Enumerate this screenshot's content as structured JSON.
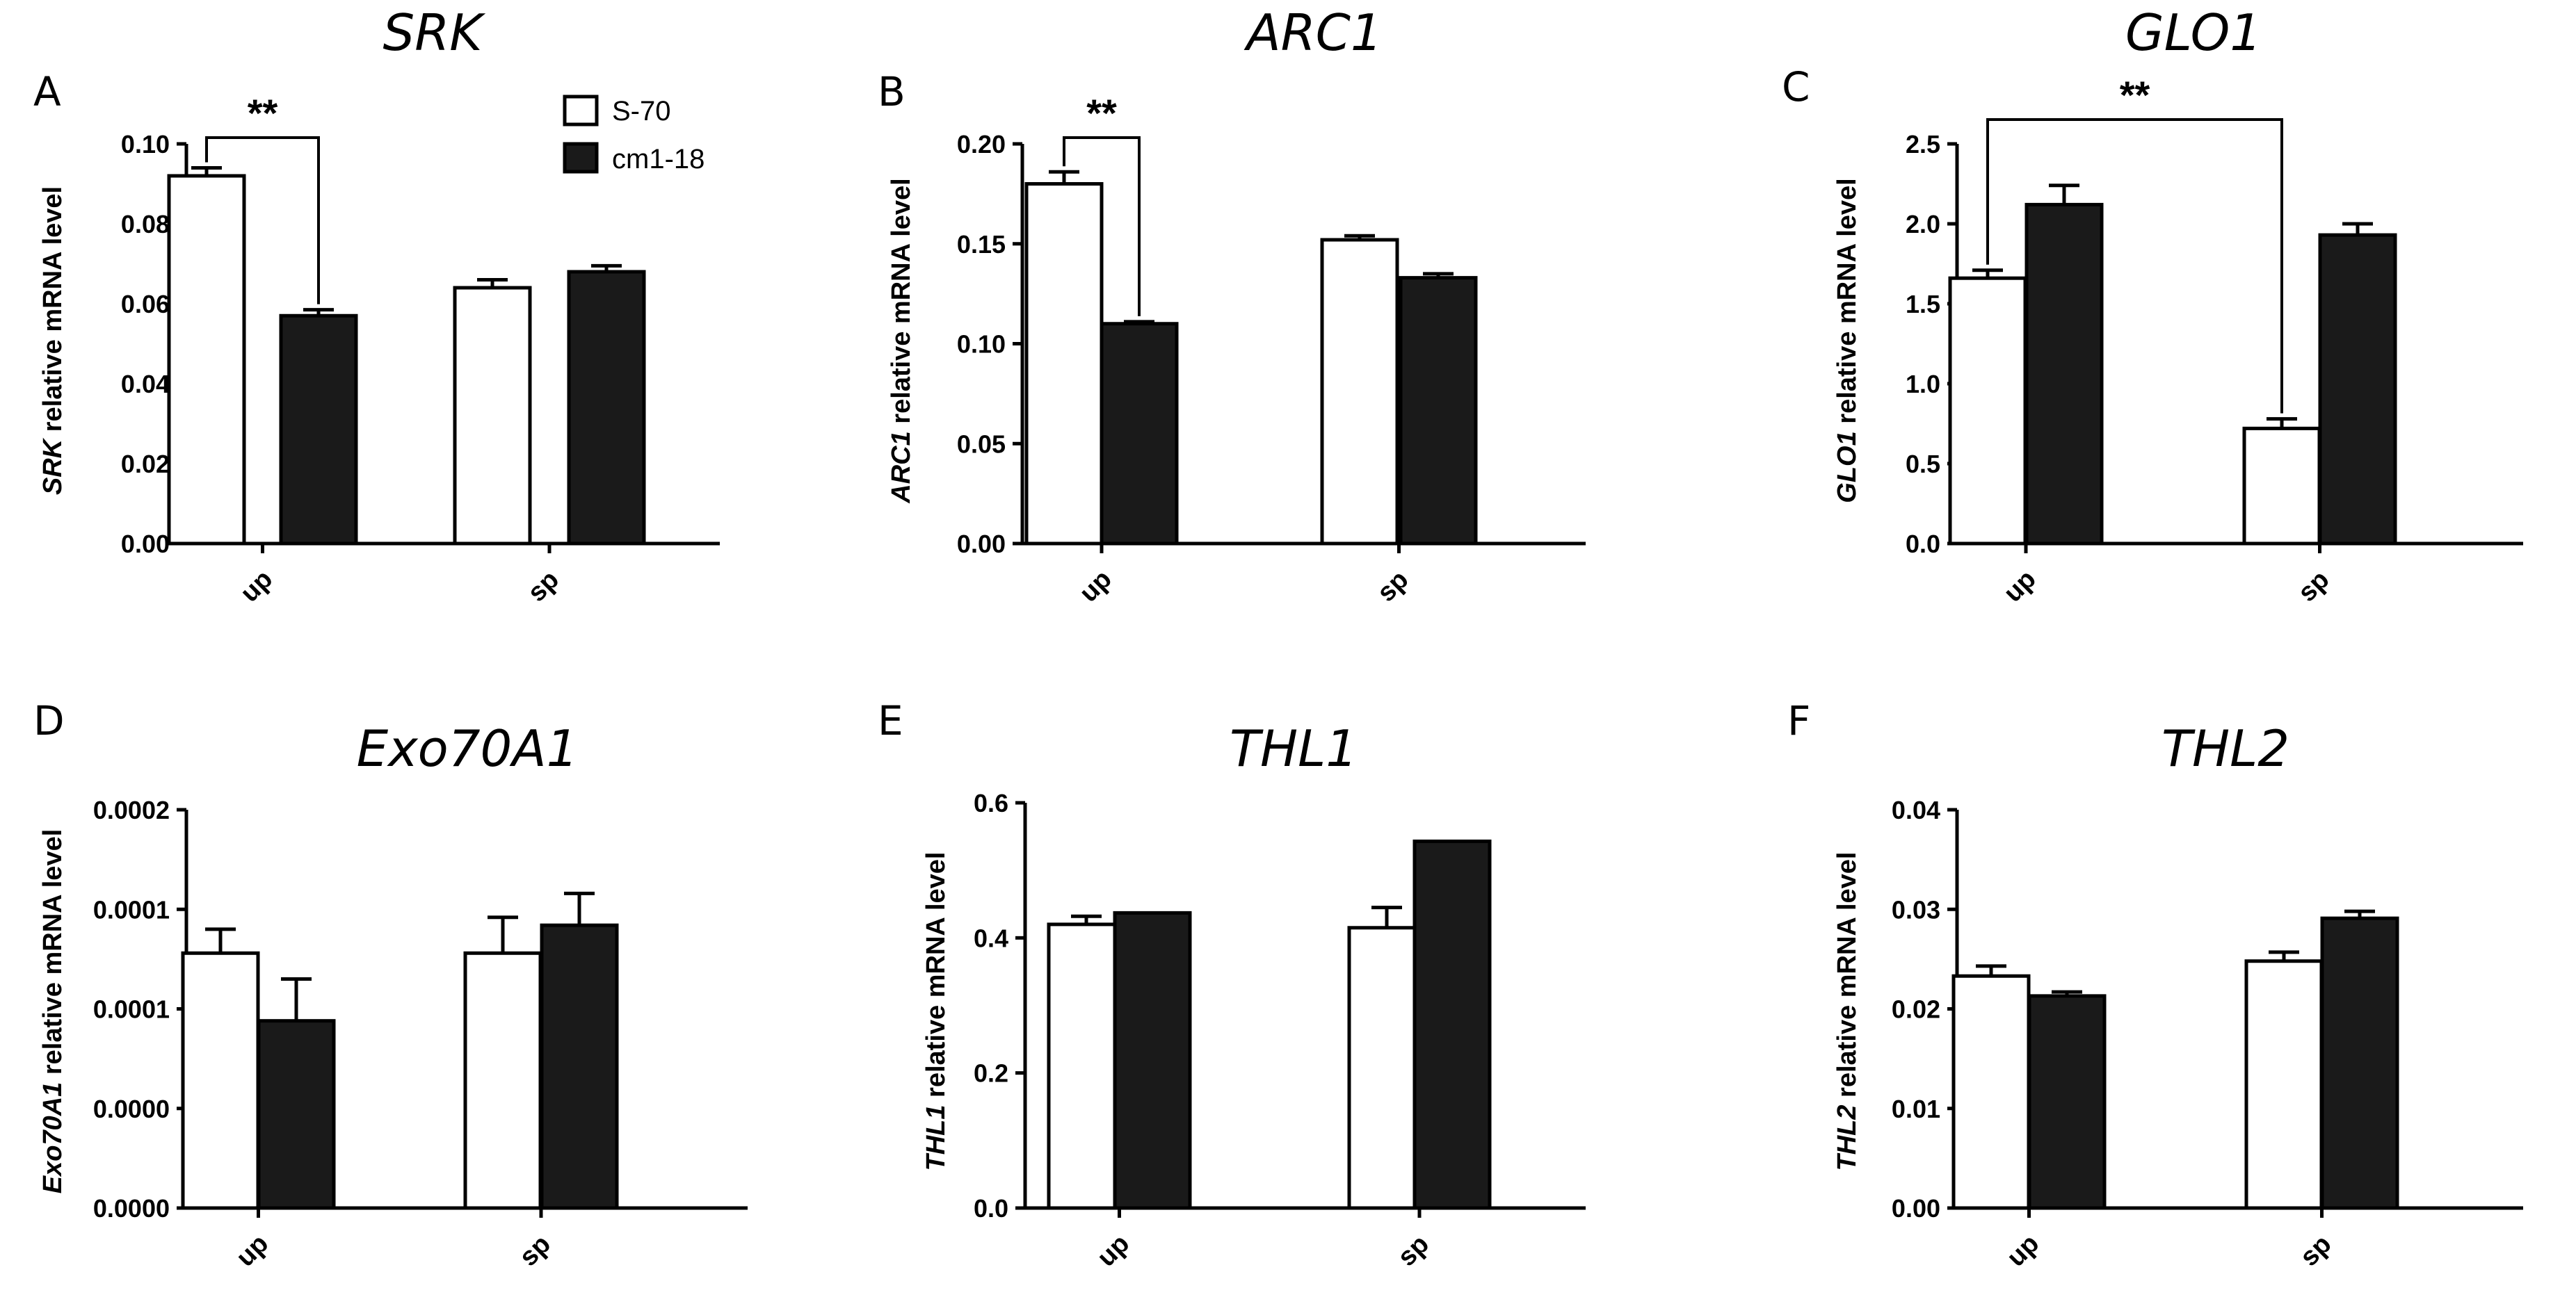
{
  "legend": {
    "series": [
      {
        "name": "S-70",
        "color": "#ffffff"
      },
      {
        "name": "cm1-18",
        "color": "#1a1a1a"
      }
    ]
  },
  "chart_data": [
    {
      "panel": "A",
      "type": "bar",
      "title": "SRK",
      "ylabel_gene": "SRK",
      "ylabel_rest": " relative mRNA level",
      "categories": [
        "up",
        "sp"
      ],
      "series": [
        {
          "name": "S-70",
          "values": [
            0.092,
            0.064
          ],
          "errors": [
            0.002,
            0.002
          ]
        },
        {
          "name": "cm1-18",
          "values": [
            0.057,
            0.068
          ],
          "errors": [
            0.0015,
            0.0015
          ]
        }
      ],
      "ylim": [
        0,
        0.1
      ],
      "yticks": [
        0,
        0.02,
        0.04,
        0.06,
        0.08,
        0.1
      ],
      "ytick_labels": [
        "0.00",
        "0.02",
        "0.04",
        "0.06",
        "0.08",
        "0.10"
      ],
      "significance": {
        "label": "**",
        "from": [
          "up",
          0
        ],
        "to": [
          "up",
          1
        ]
      }
    },
    {
      "panel": "B",
      "type": "bar",
      "title": "ARC1",
      "ylabel_gene": "ARC1",
      "ylabel_rest": " relative mRNA level",
      "categories": [
        "up",
        "sp"
      ],
      "series": [
        {
          "name": "S-70",
          "values": [
            0.18,
            0.152
          ],
          "errors": [
            0.006,
            0.002
          ]
        },
        {
          "name": "cm1-18",
          "values": [
            0.11,
            0.133
          ],
          "errors": [
            0.001,
            0.002
          ]
        }
      ],
      "ylim": [
        0,
        0.2
      ],
      "yticks": [
        0,
        0.05,
        0.1,
        0.15,
        0.2
      ],
      "ytick_labels": [
        "0.00",
        "0.05",
        "0.10",
        "0.15",
        "0.20"
      ],
      "significance": {
        "label": "**",
        "from": [
          "up",
          0
        ],
        "to": [
          "up",
          1
        ]
      }
    },
    {
      "panel": "C",
      "type": "bar",
      "title": "GLO1",
      "ylabel_gene": "GLO1",
      "ylabel_rest": " relative mRNA level",
      "categories": [
        "up",
        "sp"
      ],
      "series": [
        {
          "name": "S-70",
          "values": [
            1.66,
            0.72
          ],
          "errors": [
            0.05,
            0.06
          ]
        },
        {
          "name": "cm1-18",
          "values": [
            2.12,
            1.93
          ],
          "errors": [
            0.12,
            0.07
          ]
        }
      ],
      "ylim": [
        0,
        2.5
      ],
      "yticks": [
        0,
        0.5,
        1,
        1.5,
        2,
        2.5
      ],
      "ytick_labels": [
        "0.0",
        "0.5",
        "1.0",
        "1.5",
        "2.0",
        "2.5"
      ],
      "significance": {
        "label": "**",
        "from": [
          "up",
          0
        ],
        "to": [
          "sp",
          0
        ]
      }
    },
    {
      "panel": "D",
      "type": "bar",
      "title": "Exo70A1",
      "ylabel_gene": "Exo70A1",
      "ylabel_rest": " relative mRNA level",
      "categories": [
        "up",
        "sp"
      ],
      "series": [
        {
          "name": "S-70",
          "values": [
            0.000128,
            0.000128
          ],
          "errors": [
            1.2e-05,
            1.8e-05
          ]
        },
        {
          "name": "cm1-18",
          "values": [
            9.4e-05,
            0.000142
          ],
          "errors": [
            2.1e-05,
            1.6e-05
          ]
        }
      ],
      "ylim": [
        0,
        0.0002
      ],
      "yticks": [
        0,
        5e-05,
        0.0001,
        0.00015,
        0.0002
      ],
      "ytick_labels": [
        "0.0000",
        "0.0000",
        "0.0001",
        "0.0001",
        "0.0002"
      ],
      "significance": null
    },
    {
      "panel": "E",
      "type": "bar",
      "title": "THL1",
      "ylabel_gene": "THL1",
      "ylabel_rest": " relative mRNA level",
      "categories": [
        "up",
        "sp"
      ],
      "series": [
        {
          "name": "S-70",
          "values": [
            0.42,
            0.415
          ],
          "errors": [
            0.012,
            0.03
          ]
        },
        {
          "name": "cm1-18",
          "values": [
            0.437,
            0.543
          ],
          "errors": [
            0.0,
            0.0
          ]
        }
      ],
      "ylim": [
        0,
        0.6
      ],
      "yticks": [
        0,
        0.2,
        0.4,
        0.6
      ],
      "ytick_labels": [
        "0.0",
        "0.2",
        "0.4",
        "0.6"
      ],
      "significance": null
    },
    {
      "panel": "F",
      "type": "bar",
      "title": "THL2",
      "ylabel_gene": "THL2",
      "ylabel_rest": " relative mRNA level",
      "categories": [
        "up",
        "sp"
      ],
      "series": [
        {
          "name": "S-70",
          "values": [
            0.0233,
            0.0248
          ],
          "errors": [
            0.001,
            0.0009
          ]
        },
        {
          "name": "cm1-18",
          "values": [
            0.0213,
            0.0291
          ],
          "errors": [
            0.0004,
            0.0007
          ]
        }
      ],
      "ylim": [
        0,
        0.04
      ],
      "yticks": [
        0,
        0.01,
        0.02,
        0.03,
        0.04
      ],
      "ytick_labels": [
        "0.00",
        "0.01",
        "0.02",
        "0.03",
        "0.04"
      ],
      "significance": null
    }
  ]
}
